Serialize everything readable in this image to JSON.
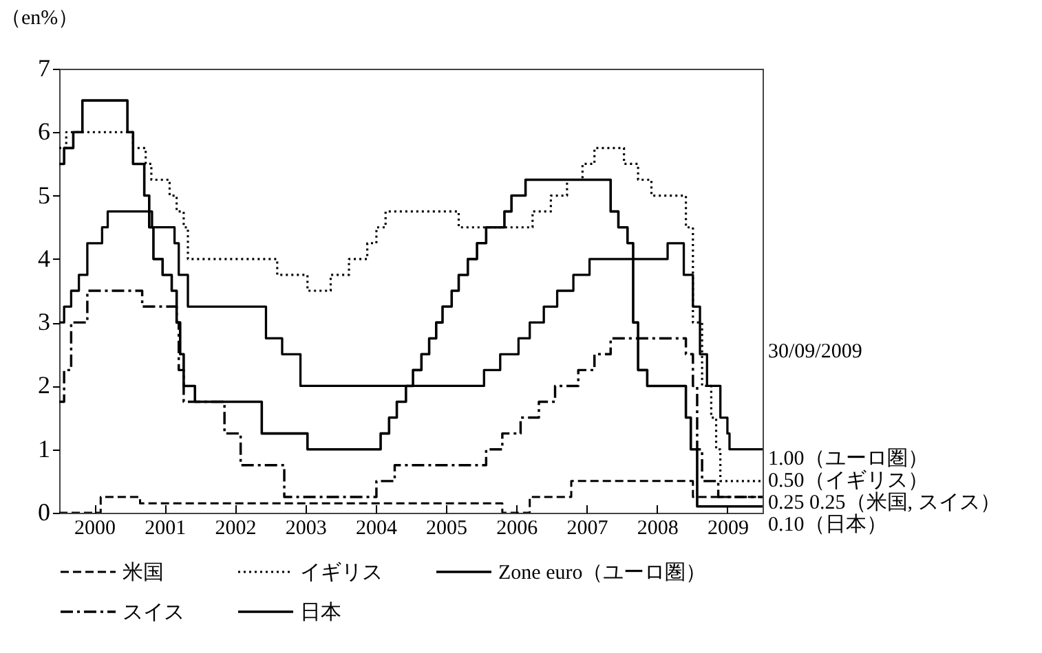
{
  "chart_data": {
    "type": "step",
    "ylabel": "（en%）",
    "xlim": [
      2000,
      2010
    ],
    "ylim": [
      0,
      7
    ],
    "yticks": [
      0,
      1,
      2,
      3,
      4,
      5,
      6,
      7
    ],
    "xticks": [
      {
        "value": 2000.5,
        "label": "2000"
      },
      {
        "value": 2001.5,
        "label": "2001"
      },
      {
        "value": 2002.5,
        "label": "2002"
      },
      {
        "value": 2003.5,
        "label": "2003"
      },
      {
        "value": 2004.5,
        "label": "2004"
      },
      {
        "value": 2005.5,
        "label": "2005"
      },
      {
        "value": 2006.5,
        "label": "2006"
      },
      {
        "value": 2007.5,
        "label": "2007"
      },
      {
        "value": 2008.5,
        "label": "2008"
      },
      {
        "value": 2009.5,
        "label": "2009"
      }
    ],
    "legend": "bottom",
    "series": [
      {
        "name": "米国",
        "color": "#000000",
        "line_style": "dashed",
        "x": [
          2000.0,
          2000.59,
          2001.15,
          2006.3,
          2006.69,
          2007.28,
          2009.01,
          2010.0
        ],
        "values": [
          0,
          0.25,
          0.15,
          0,
          0.25,
          0.5,
          0.25,
          0.25
        ]
      },
      {
        "name": "イギリス",
        "color": "#000000",
        "line_style": "dotted",
        "x": [
          2000.0,
          2000.1,
          2001.05,
          2001.23,
          2001.31,
          2001.57,
          2001.67,
          2001.77,
          2001.83,
          2003.1,
          2003.53,
          2003.86,
          2004.12,
          2004.38,
          2004.51,
          2004.64,
          2005.68,
          2006.73,
          2006.99,
          2007.22,
          2007.44,
          2007.61,
          2008.03,
          2008.23,
          2008.42,
          2008.91,
          2009.01,
          2009.14,
          2009.27,
          2009.34,
          2009.4,
          2010.0
        ],
        "values": [
          5.75,
          6.0,
          5.75,
          5.5,
          5.25,
          5.0,
          4.75,
          4.5,
          4.0,
          3.75,
          3.5,
          3.75,
          4.0,
          4.25,
          4.5,
          4.75,
          4.5,
          4.75,
          5.0,
          5.25,
          5.5,
          5.75,
          5.5,
          5.25,
          5.0,
          4.5,
          3.0,
          2.0,
          1.5,
          1.0,
          0.5,
          0.5
        ]
      },
      {
        "name": "Zone euro（ユーロ圏）",
        "color": "#000000",
        "line_style": "solid",
        "x": [
          2000.0,
          2000.07,
          2000.17,
          2000.28,
          2000.4,
          2000.61,
          2000.69,
          2001.32,
          2001.64,
          2001.7,
          2001.83,
          2002.94,
          2003.17,
          2003.43,
          2006.04,
          2006.27,
          2006.53,
          2006.69,
          2006.89,
          2007.08,
          2007.31,
          2007.54,
          2008.65,
          2008.88,
          2009.01,
          2009.11,
          2009.21,
          2009.4,
          2009.5,
          2009.53,
          2010.0
        ],
        "values": [
          3,
          3.25,
          3.5,
          3.75,
          4.25,
          4.5,
          4.75,
          4.5,
          4.25,
          3.75,
          3.25,
          2.75,
          2.5,
          2.0,
          2.25,
          2.5,
          2.75,
          3.0,
          3.25,
          3.5,
          3.75,
          4.0,
          4.25,
          3.75,
          3.25,
          2.5,
          2.0,
          1.5,
          1.25,
          1.0,
          1.0
        ]
      },
      {
        "name": "スイス",
        "color": "#000000",
        "line_style": "dashdot",
        "x": [
          2000.0,
          2000.07,
          2000.17,
          2000.4,
          2001.18,
          2001.67,
          2001.7,
          2001.77,
          2002.35,
          2002.58,
          2003.2,
          2004.51,
          2004.77,
          2006.07,
          2006.3,
          2006.56,
          2006.82,
          2007.05,
          2007.38,
          2007.61,
          2007.84,
          2008.91,
          2009.01,
          2009.07,
          2009.14,
          2009.37,
          2010.0
        ],
        "values": [
          1.75,
          2.25,
          3.0,
          3.5,
          3.25,
          3.0,
          2.25,
          1.75,
          1.25,
          0.75,
          0.25,
          0.5,
          0.75,
          1.0,
          1.25,
          1.5,
          1.75,
          2.0,
          2.25,
          2.5,
          2.75,
          2.5,
          2.0,
          1.0,
          0.5,
          0.25,
          0.25
        ]
      },
      {
        "name": "日本",
        "color": "#000000",
        "line_style": "solid",
        "x": [
          2000.0,
          2000.07,
          2000.2,
          2000.33,
          2000.97,
          2001.05,
          2001.21,
          2001.28,
          2001.34,
          2001.47,
          2001.6,
          2001.67,
          2001.72,
          2001.77,
          2001.93,
          2002.88,
          2003.53,
          2004.57,
          2004.69,
          2004.8,
          2004.93,
          2005.03,
          2005.15,
          2005.26,
          2005.36,
          2005.45,
          2005.58,
          2005.68,
          2005.81,
          2005.94,
          2006.07,
          2006.33,
          2006.43,
          2006.63,
          2007.84,
          2007.95,
          2008.08,
          2008.16,
          2008.23,
          2008.36,
          2008.91,
          2008.98,
          2009.07,
          2010.0
        ],
        "values": [
          5.5,
          5.75,
          6.0,
          6.5,
          6.0,
          5.5,
          5.0,
          4.5,
          4.0,
          3.75,
          3.5,
          3.0,
          2.5,
          2.0,
          1.75,
          1.25,
          1.0,
          1.25,
          1.5,
          1.75,
          2.0,
          2.25,
          2.5,
          2.75,
          3.0,
          3.25,
          3.5,
          3.75,
          4.0,
          4.25,
          4.5,
          4.75,
          5.0,
          5.25,
          4.75,
          4.5,
          4.25,
          3.0,
          2.25,
          2.0,
          1.5,
          1.0,
          0.1,
          0.1
        ]
      }
    ],
    "annotations": [
      "30/09/2009",
      "1.00（ユーロ圏）",
      "0.50（イギリス）",
      "0.25  0.25（米国, スイス）",
      "0.10（日本）"
    ]
  }
}
